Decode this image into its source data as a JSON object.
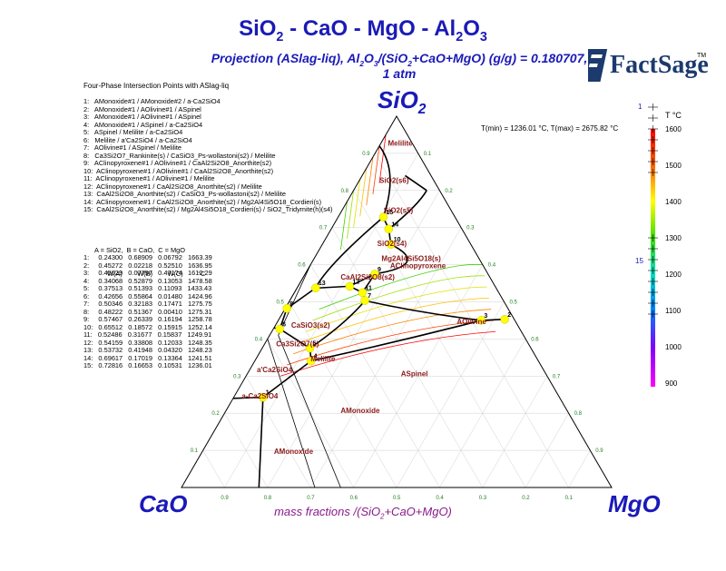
{
  "title": {
    "text": "SiO2 - CaO - MgO - Al2O3",
    "parts": [
      "SiO",
      "2",
      " - CaO - MgO - Al",
      "2",
      "O",
      "3"
    ]
  },
  "subtitle": {
    "line1_parts": [
      "Projection (ASlag-liq),  Al",
      "2",
      "O",
      "3",
      "/(SiO",
      "2",
      "+CaO+MgO) (g/g)  = 0.180707,"
    ],
    "line2": "1 atm"
  },
  "logo": {
    "text": "FactSage",
    "tm": "TM"
  },
  "apex_labels": {
    "top": [
      "SiO",
      "2"
    ],
    "left": "CaO",
    "right": "MgO"
  },
  "axis_title_parts": [
    "mass fractions /(SiO",
    "2",
    "+CaO+MgO)"
  ],
  "list_title": "Four-Phase Intersection Points with ASlag-liq",
  "phase_list": [
    "1:   AMonoxide#1 / AMonoxide#2 / a-Ca2SiO4",
    "2:   AMonoxide#1 / AOlivine#1 / ASpinel",
    "3:   AMonoxide#1 / AOlivine#1 / ASpinel",
    "4:   AMonoxide#1 / ASpinel / a-Ca2SiO4",
    "5:   ASpinel / Melilite / a-Ca2SiO4",
    "6:   Melilite / a'Ca2SiO4 / a-Ca2SiO4",
    "7:   AOlivine#1 / ASpinel / Melilite",
    "8:   Ca3Si2O7_Rankinite(s) / CaSiO3_Ps-wollastoni(s2) / Melilite",
    "9:   AClinopyroxene#1 / AOlivine#1 / CaAl2Si2O8_Anorthite(s2)",
    "10:  AClinopyroxene#1 / AOlivine#1 / CaAl2Si2O8_Anorthite(s2)",
    "11:  AClinopyroxene#1 / AOlivine#1 / Melilite",
    "12:  AClinopyroxene#1 / CaAl2Si2O8_Anorthite(s2) / Melilite",
    "13:  CaAl2Si2O8_Anorthite(s2) / CaSiO3_Ps-wollastoni(s2) / Melilite",
    "14:  AClinopyroxene#1 / CaAl2Si2O8_Anorthite(s2) / Mg2Al4Si5O18_Cordieri(s)",
    "15:  CaAl2Si2O8_Anorthite(s2) / Mg2Al4Si5O18_Cordieri(s) / SiO2_Tridymite(h)(s4)"
  ],
  "points_header": {
    "legend": "A = SiO2,  B = CaO,  C = MgO",
    "columns": "W(A)        W(B)        W(C)        °C"
  },
  "points_table": [
    "1:     0.24300   0.68909   0.06792   1663.39",
    "2:     0.45272   0.02218   0.52510   1636.95",
    "3:     0.45029   0.07797   0.47174   1612.29",
    "4:     0.34068   0.52879   0.13053   1478.58",
    "5:     0.37513   0.51393   0.11093   1433.43",
    "6:     0.42656   0.55864   0.01480   1424.96",
    "7:     0.50346   0.32183   0.17471   1275.75",
    "8:     0.48222   0.51367   0.00410   1275.31",
    "9:     0.57467   0.26339   0.16194   1258.78",
    "10:   0.65512   0.18572   0.15915   1252.14",
    "11:   0.52486   0.31677   0.15837   1249.91",
    "12:   0.54159   0.33808   0.12033   1248.35",
    "13:   0.53732   0.41948   0.04320   1248.23",
    "14:   0.69617   0.17019   0.13364   1241.51",
    "15:   0.72816   0.16653   0.10531   1236.01"
  ],
  "trange_text": "T(min) = 1236.01 °C, T(max) = 2675.82 °C",
  "colorbar": {
    "unit": "T °C",
    "ticks": [
      "1600",
      "1500",
      "1400",
      "1300",
      "1200",
      "1100",
      "1000",
      "900"
    ],
    "marker_top_label": "1",
    "marker_bottom_label": "15",
    "colors": [
      "#ff0000",
      "#ff8000",
      "#ffff00",
      "#00e000",
      "#00e0e0",
      "#0060ff",
      "#8000ff",
      "#ff00ff"
    ]
  },
  "axis_ticks": {
    "bottom": [
      "0.9",
      "0.8",
      "0.7",
      "0.6",
      "0.5",
      "0.4",
      "0.3",
      "0.2",
      "0.1"
    ],
    "left": [
      "0.1",
      "0.2",
      "0.3",
      "0.4",
      "0.5",
      "0.6",
      "0.7",
      "0.8",
      "0.9"
    ],
    "right": [
      "0.9",
      "0.8",
      "0.7",
      "0.6",
      "0.5",
      "0.4",
      "0.3",
      "0.2",
      "0.1"
    ]
  },
  "chart_data": {
    "type": "ternary-projection",
    "vertices": {
      "top": "SiO2",
      "left": "CaO",
      "right": "MgO"
    },
    "region_labels": [
      {
        "text": "Melilite",
        "sio2": 0.92,
        "mgo": 0.02
      },
      {
        "text": "SiO2(s6)",
        "sio2": 0.82,
        "mgo": 0.05
      },
      {
        "text": "SiO2(s5)",
        "sio2": 0.74,
        "mgo": 0.1
      },
      {
        "text": "SiO2(s4)",
        "sio2": 0.65,
        "mgo": 0.13
      },
      {
        "text": "Mg2Al4Si5O18(s)",
        "sio2": 0.61,
        "mgo": 0.16
      },
      {
        "text": "AClinopyroxene",
        "sio2": 0.59,
        "mgo": 0.19
      },
      {
        "text": "CaAl2Si2O8(s2)",
        "sio2": 0.56,
        "mgo": 0.09
      },
      {
        "text": "AOlivine",
        "sio2": 0.44,
        "mgo": 0.42
      },
      {
        "text": "CaSiO3(s2)",
        "sio2": 0.43,
        "mgo": 0.04
      },
      {
        "text": "Ca3Si2O7(s)",
        "sio2": 0.38,
        "mgo": 0.03
      },
      {
        "text": "Melilite",
        "sio2": 0.34,
        "mgo": 0.13
      },
      {
        "text": "a'Ca2SiO4",
        "sio2": 0.31,
        "mgo": 0.02
      },
      {
        "text": "ASpinel",
        "sio2": 0.3,
        "mgo": 0.36
      },
      {
        "text": "a-Ca2SiO4",
        "sio2": 0.24,
        "mgo": 0.02
      },
      {
        "text": "AMonoxide",
        "sio2": 0.2,
        "mgo": 0.27
      },
      {
        "text": "AMonoxide",
        "sio2": 0.09,
        "mgo": 0.17
      }
    ],
    "point_ids": [
      "1",
      "2",
      "3",
      "4",
      "5",
      "6",
      "7",
      "8",
      "9",
      "10",
      "11",
      "12",
      "13",
      "14",
      "15"
    ],
    "points": [
      {
        "id": 1,
        "sio2": 0.243,
        "cao": 0.68909,
        "mgo": 0.06792,
        "t": 1663.39
      },
      {
        "id": 2,
        "sio2": 0.45272,
        "cao": 0.02218,
        "mgo": 0.5251,
        "t": 1636.95
      },
      {
        "id": 3,
        "sio2": 0.45029,
        "cao": 0.07797,
        "mgo": 0.47174,
        "t": 1612.29
      },
      {
        "id": 4,
        "sio2": 0.34068,
        "cao": 0.52879,
        "mgo": 0.13053,
        "t": 1478.58
      },
      {
        "id": 5,
        "sio2": 0.37513,
        "cao": 0.51393,
        "mgo": 0.11093,
        "t": 1433.43
      },
      {
        "id": 6,
        "sio2": 0.42656,
        "cao": 0.55864,
        "mgo": 0.0148,
        "t": 1424.96
      },
      {
        "id": 7,
        "sio2": 0.50346,
        "cao": 0.32183,
        "mgo": 0.17471,
        "t": 1275.75
      },
      {
        "id": 8,
        "sio2": 0.48222,
        "cao": 0.51367,
        "mgo": 0.0041,
        "t": 1275.31
      },
      {
        "id": 9,
        "sio2": 0.57467,
        "cao": 0.26339,
        "mgo": 0.16194,
        "t": 1258.78
      },
      {
        "id": 10,
        "sio2": 0.65512,
        "cao": 0.18572,
        "mgo": 0.15915,
        "t": 1252.14
      },
      {
        "id": 11,
        "sio2": 0.52486,
        "cao": 0.31677,
        "mgo": 0.15837,
        "t": 1249.91
      },
      {
        "id": 12,
        "sio2": 0.54159,
        "cao": 0.33808,
        "mgo": 0.12033,
        "t": 1248.35
      },
      {
        "id": 13,
        "sio2": 0.53732,
        "cao": 0.41948,
        "mgo": 0.0432,
        "t": 1248.23
      },
      {
        "id": 14,
        "sio2": 0.69617,
        "cao": 0.17019,
        "mgo": 0.13364,
        "t": 1241.51
      },
      {
        "id": 15,
        "sio2": 0.72816,
        "cao": 0.16653,
        "mgo": 0.10531,
        "t": 1236.01
      }
    ],
    "boundaries": [
      [
        {
          "sio2": 0.24,
          "mgo": 0.0
        },
        {
          "sio2": 0.243,
          "mgo": 0.068
        }
      ],
      [
        {
          "sio2": 0.243,
          "mgo": 0.068
        },
        {
          "sio2": 0.341,
          "mgo": 0.131
        }
      ],
      [
        {
          "sio2": 0.341,
          "mgo": 0.131
        },
        {
          "sio2": 0.375,
          "mgo": 0.111
        }
      ],
      [
        {
          "sio2": 0.375,
          "mgo": 0.111
        },
        {
          "sio2": 0.427,
          "mgo": 0.015
        }
      ],
      [
        {
          "sio2": 0.427,
          "mgo": 0.015
        },
        {
          "sio2": 0.43,
          "mgo": 0.0
        }
      ],
      [
        {
          "sio2": 0.375,
          "mgo": 0.111
        },
        {
          "sio2": 0.44,
          "mgo": 0.16
        },
        {
          "sio2": 0.503,
          "mgo": 0.175
        }
      ],
      [
        {
          "sio2": 0.341,
          "mgo": 0.131
        },
        {
          "sio2": 0.39,
          "mgo": 0.3
        },
        {
          "sio2": 0.45,
          "mgo": 0.472
        }
      ],
      [
        {
          "sio2": 0.503,
          "mgo": 0.175
        },
        {
          "sio2": 0.47,
          "mgo": 0.32
        },
        {
          "sio2": 0.45,
          "mgo": 0.472
        }
      ],
      [
        {
          "sio2": 0.45,
          "mgo": 0.472
        },
        {
          "sio2": 0.453,
          "mgo": 0.525
        }
      ],
      [
        {
          "sio2": 0.243,
          "mgo": 0.068
        },
        {
          "sio2": 0.0,
          "mgo": 0.18
        }
      ],
      [
        {
          "sio2": 0.503,
          "mgo": 0.175
        },
        {
          "sio2": 0.525,
          "mgo": 0.158
        }
      ],
      [
        {
          "sio2": 0.525,
          "mgo": 0.158
        },
        {
          "sio2": 0.542,
          "mgo": 0.12
        }
      ],
      [
        {
          "sio2": 0.525,
          "mgo": 0.158
        },
        {
          "sio2": 0.575,
          "mgo": 0.162
        }
      ],
      [
        {
          "sio2": 0.575,
          "mgo": 0.162
        },
        {
          "sio2": 0.6,
          "mgo": 0.28
        },
        {
          "sio2": 0.655,
          "mgo": 0.159
        }
      ],
      [
        {
          "sio2": 0.655,
          "mgo": 0.159
        },
        {
          "sio2": 0.696,
          "mgo": 0.134
        }
      ],
      [
        {
          "sio2": 0.696,
          "mgo": 0.134
        },
        {
          "sio2": 0.728,
          "mgo": 0.105
        }
      ],
      [
        {
          "sio2": 0.696,
          "mgo": 0.134
        },
        {
          "sio2": 0.76,
          "mgo": 0.17
        },
        {
          "sio2": 0.8,
          "mgo": 0.17
        }
      ],
      [
        {
          "sio2": 0.575,
          "mgo": 0.162
        },
        {
          "sio2": 0.542,
          "mgo": 0.12
        }
      ],
      [
        {
          "sio2": 0.542,
          "mgo": 0.12
        },
        {
          "sio2": 0.537,
          "mgo": 0.043
        }
      ],
      [
        {
          "sio2": 0.537,
          "mgo": 0.043
        },
        {
          "sio2": 0.482,
          "mgo": 0.004
        }
      ],
      [
        {
          "sio2": 0.482,
          "mgo": 0.004
        },
        {
          "sio2": 0.427,
          "mgo": 0.015
        }
      ],
      [
        {
          "sio2": 0.537,
          "mgo": 0.043
        },
        {
          "sio2": 0.6,
          "mgo": 0.04
        },
        {
          "sio2": 0.728,
          "mgo": 0.105
        }
      ],
      [
        {
          "sio2": 0.728,
          "mgo": 0.105
        },
        {
          "sio2": 0.85,
          "mgo": 0.08
        },
        {
          "sio2": 0.92,
          "mgo": 0.0
        }
      ],
      [
        {
          "sio2": 0.8,
          "mgo": 0.17
        },
        {
          "sio2": 0.84,
          "mgo": 0.1
        }
      ]
    ],
    "triangle_cutouts": [
      [
        {
          "sio2": 0.46,
          "mgo": 0.0
        },
        {
          "sio2": 0.6,
          "mgo": 0.0
        },
        {
          "sio2": 0.41,
          "mgo": 0.02
        },
        {
          "sio2": 0.0,
          "mgo": 0.37
        }
      ],
      [
        {
          "sio2": 0.4,
          "mgo": 0.0
        },
        {
          "sio2": 0.0,
          "mgo": 0.31
        }
      ]
    ]
  }
}
